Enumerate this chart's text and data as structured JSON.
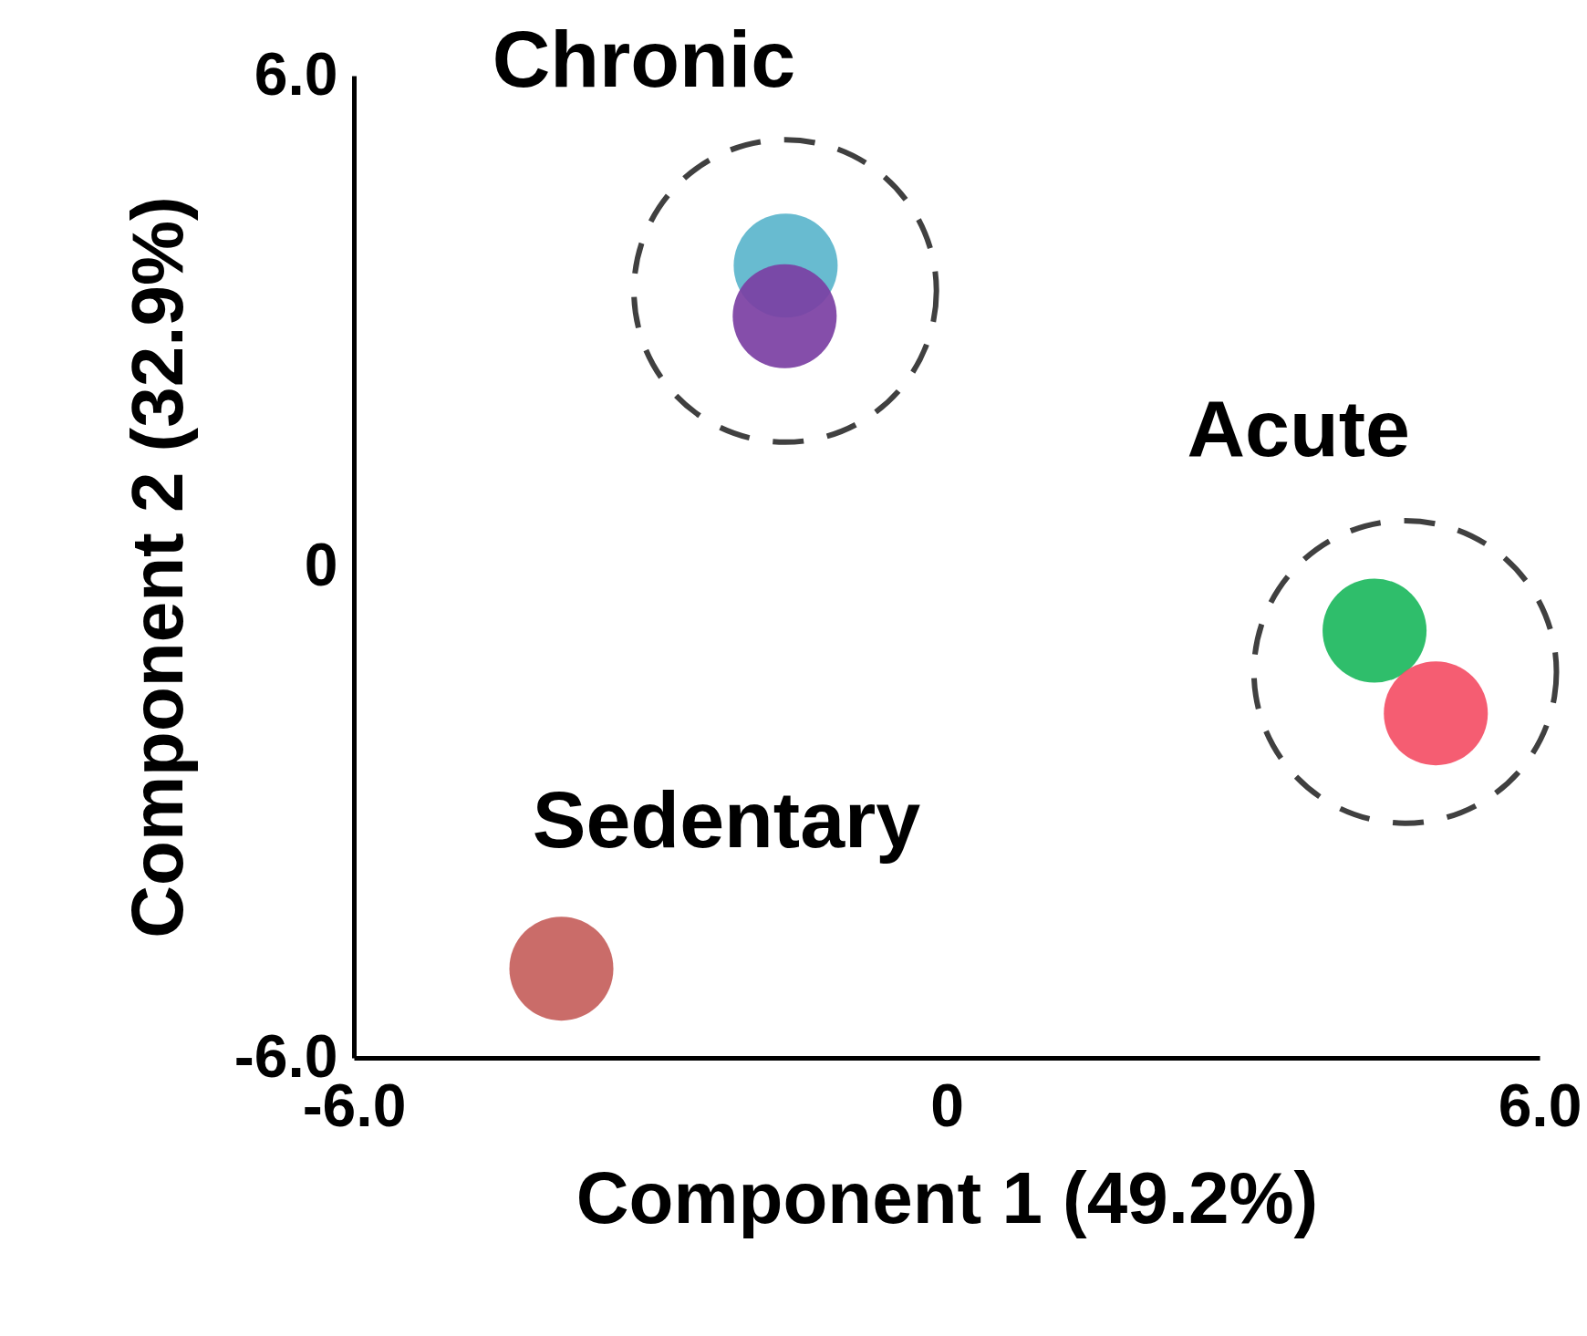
{
  "chart_data": {
    "type": "scatter",
    "xlabel": "Component 1 (49.2%)",
    "ylabel": "Component 2 (32.9%)",
    "xlim": [
      -6,
      6
    ],
    "ylim": [
      -6,
      6
    ],
    "xticks": [
      {
        "value": -6,
        "label": "-6.0"
      },
      {
        "value": 0,
        "label": "0"
      },
      {
        "value": 6,
        "label": "6.0"
      }
    ],
    "yticks": [
      {
        "value": -6,
        "label": "-6.0"
      },
      {
        "value": 0,
        "label": "0"
      },
      {
        "value": 6,
        "label": "6.0"
      }
    ],
    "grid": false,
    "legend": false,
    "marker": "circle",
    "series": [
      {
        "color": "#5bb5cc",
        "x": [
          -1.63
        ],
        "values": [
          3.68
        ]
      },
      {
        "color": "#7b3fa3",
        "x": [
          -1.64
        ],
        "values": [
          3.06
        ]
      },
      {
        "color": "#1db95e",
        "x": [
          4.33
        ],
        "values": [
          -0.78
        ]
      },
      {
        "color": "#f44f66",
        "x": [
          4.95
        ],
        "values": [
          -1.79
        ]
      },
      {
        "color": "#c5605c",
        "x": [
          -3.9
        ],
        "values": [
          -4.91
        ]
      }
    ],
    "annotations": [
      "Chronic",
      "Acute",
      "Sedentary"
    ]
  }
}
